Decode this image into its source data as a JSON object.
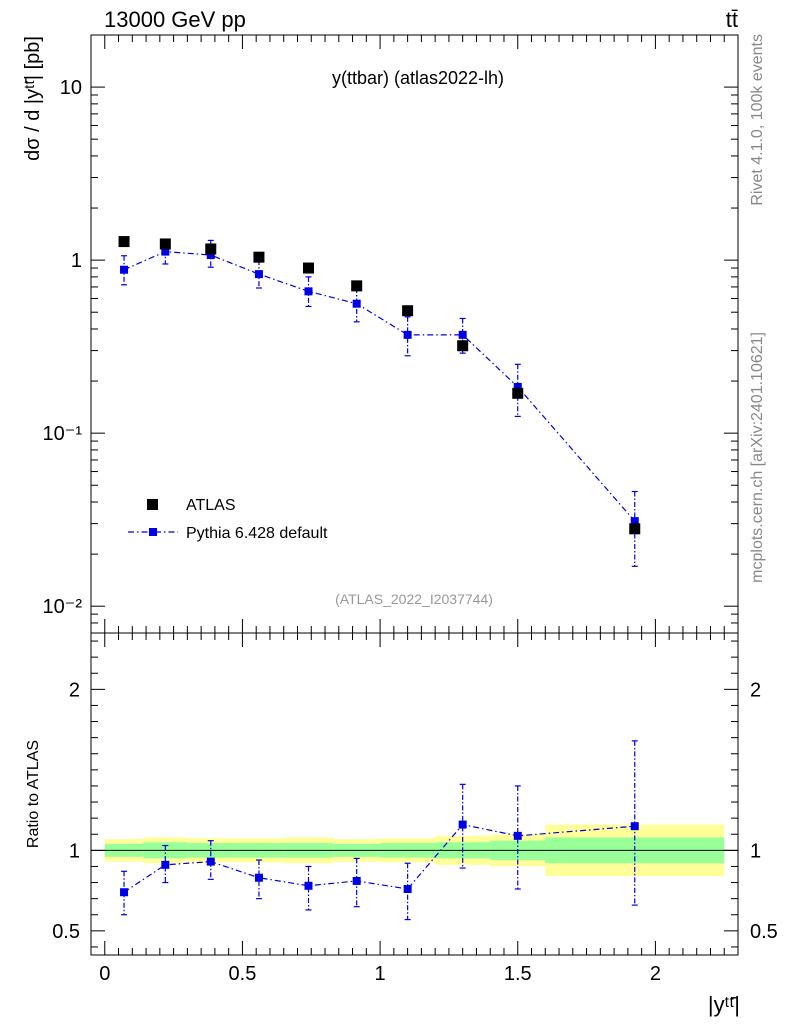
{
  "header": {
    "energy_label": "13000 GeV pp",
    "process_label": "tt̄"
  },
  "side_labels": {
    "rivet": "Rivet 4.1.0,  100k events",
    "mcplots": "mcplots.cern.ch [arXiv:2401.10621]"
  },
  "main_panel": {
    "title": "y(ttbar) (atlas2022-lh)",
    "analysis_id": "(ATLAS_2022_I2037744)",
    "ylabel": "dσ / d |yᵗᵗ̄| [pb]"
  },
  "ratio_panel": {
    "ylabel": "Ratio to ATLAS",
    "xlabel": "|yᵗᵗ̄|"
  },
  "colors": {
    "data": "#000000",
    "mc": "#0000e6",
    "band_inner": "#99ff99",
    "band_outer": "#ffff99"
  },
  "chart_data": [
    {
      "type": "scatter",
      "panel": "main",
      "yscale": "log",
      "xlim": [
        -0.05,
        2.3
      ],
      "ylim": [
        0.007,
        20
      ],
      "y_ticks": [
        {
          "value": 10,
          "label": "10"
        },
        {
          "value": 1,
          "label": "1"
        },
        {
          "value": 0.1,
          "label": "10⁻¹"
        },
        {
          "value": 0.01,
          "label": "10⁻²"
        }
      ],
      "x_bins": [
        [
          0.0,
          0.14
        ],
        [
          0.14,
          0.3
        ],
        [
          0.3,
          0.47
        ],
        [
          0.47,
          0.65
        ],
        [
          0.65,
          0.83
        ],
        [
          0.83,
          1.0
        ],
        [
          1.0,
          1.2
        ],
        [
          1.2,
          1.4
        ],
        [
          1.4,
          1.6
        ],
        [
          1.6,
          2.25
        ]
      ],
      "series": [
        {
          "name": "ATLAS",
          "x": [
            0.07,
            0.22,
            0.385,
            0.56,
            0.74,
            0.915,
            1.1,
            1.3,
            1.5,
            1.925
          ],
          "values": [
            1.28,
            1.24,
            1.16,
            1.04,
            0.9,
            0.71,
            0.51,
            0.32,
            0.17,
            0.028
          ],
          "marker": "square"
        },
        {
          "name": "Pythia 6.428 default",
          "x": [
            0.07,
            0.22,
            0.385,
            0.56,
            0.74,
            0.915,
            1.1,
            1.3,
            1.5,
            1.925
          ],
          "values": [
            0.88,
            1.12,
            1.07,
            0.83,
            0.66,
            0.56,
            0.37,
            0.37,
            0.185,
            0.031
          ],
          "err_up": [
            1.06,
            1.32,
            1.3,
            1.0,
            0.8,
            0.69,
            0.47,
            0.46,
            0.25,
            0.046
          ],
          "err_down": [
            0.72,
            0.95,
            0.91,
            0.69,
            0.54,
            0.44,
            0.28,
            0.29,
            0.125,
            0.017
          ],
          "marker": "square",
          "line": "dash-dot"
        }
      ]
    },
    {
      "type": "line",
      "panel": "ratio",
      "xlim": [
        -0.05,
        2.3
      ],
      "ylim": [
        0.35,
        2.35
      ],
      "x_ticks": [
        {
          "value": 0,
          "label": "0"
        },
        {
          "value": 0.5,
          "label": "0.5"
        },
        {
          "value": 1,
          "label": "1"
        },
        {
          "value": 1.5,
          "label": "1.5"
        },
        {
          "value": 2,
          "label": "2"
        }
      ],
      "y_ticks": [
        {
          "value": 2,
          "label": "2"
        },
        {
          "value": 1,
          "label": "1"
        },
        {
          "value": 0.5,
          "label": "0.5"
        }
      ],
      "band_bins": [
        {
          "x": [
            0.0,
            0.14
          ],
          "inner": [
            0.96,
            1.04
          ],
          "outer": [
            0.93,
            1.07
          ]
        },
        {
          "x": [
            0.14,
            0.3
          ],
          "inner": [
            0.95,
            1.05
          ],
          "outer": [
            0.92,
            1.08
          ]
        },
        {
          "x": [
            0.3,
            0.47
          ],
          "inner": [
            0.955,
            1.045
          ],
          "outer": [
            0.925,
            1.075
          ]
        },
        {
          "x": [
            0.47,
            0.65
          ],
          "inner": [
            0.955,
            1.045
          ],
          "outer": [
            0.925,
            1.075
          ]
        },
        {
          "x": [
            0.65,
            0.83
          ],
          "inner": [
            0.955,
            1.045
          ],
          "outer": [
            0.92,
            1.08
          ]
        },
        {
          "x": [
            0.83,
            1.0
          ],
          "inner": [
            0.96,
            1.04
          ],
          "outer": [
            0.93,
            1.07
          ]
        },
        {
          "x": [
            1.0,
            1.2
          ],
          "inner": [
            0.955,
            1.045
          ],
          "outer": [
            0.925,
            1.075
          ]
        },
        {
          "x": [
            1.2,
            1.4
          ],
          "inner": [
            0.95,
            1.05
          ],
          "outer": [
            0.91,
            1.09
          ]
        },
        {
          "x": [
            1.4,
            1.6
          ],
          "inner": [
            0.94,
            1.06
          ],
          "outer": [
            0.9,
            1.1
          ]
        },
        {
          "x": [
            1.6,
            2.25
          ],
          "inner": [
            0.92,
            1.08
          ],
          "outer": [
            0.84,
            1.16
          ]
        }
      ],
      "series": [
        {
          "name": "Pythia 6.428 default",
          "x": [
            0.07,
            0.22,
            0.385,
            0.56,
            0.74,
            0.915,
            1.1,
            1.3,
            1.5,
            1.925
          ],
          "values": [
            0.74,
            0.91,
            0.93,
            0.83,
            0.78,
            0.81,
            0.76,
            1.16,
            1.09,
            1.15
          ],
          "err_up": [
            0.87,
            1.03,
            1.06,
            0.94,
            0.9,
            0.95,
            0.92,
            1.41,
            1.4,
            1.68
          ],
          "err_down": [
            0.6,
            0.8,
            0.82,
            0.7,
            0.63,
            0.65,
            0.57,
            0.89,
            0.76,
            0.66
          ]
        }
      ]
    }
  ]
}
